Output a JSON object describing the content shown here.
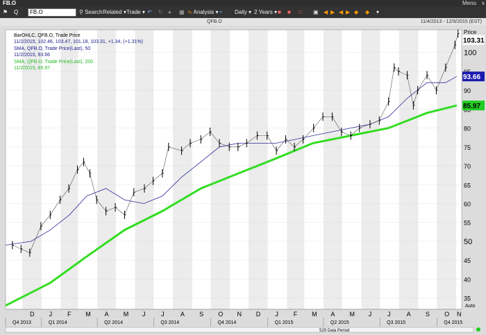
{
  "window": {
    "title": "FB.O",
    "menu_label": "Menu",
    "close_label": "x"
  },
  "toolbar": {
    "symbol_value": "FB.O",
    "symbol_prefix": "Q",
    "search_label": "Search",
    "related_label": "Related",
    "trade_label": "Trade",
    "analysis_label": "Analysis",
    "interval_label": "Daily",
    "range_label": "2 Years"
  },
  "header": {
    "chart_symbol": "QFB.O",
    "date_range": "11/4/2013 - 12/9/2015 (EST)"
  },
  "colors": {
    "price": "#000000",
    "sma50": "#2a2a9a",
    "sma200": "#33dd22",
    "sma50_tag": "#1a1ab0",
    "sma200_tag": "#22cc22",
    "band": "#ececec"
  },
  "chart_data": {
    "type": "line",
    "series": [
      {
        "name": "BarOHLC, QFB.O, Trade Price",
        "color": "#000000",
        "kind": "ohlc",
        "x": [
          "2013-11-15",
          "2013-11-29",
          "2013-12-13",
          "2013-12-31",
          "2014-01-15",
          "2014-01-31",
          "2014-02-14",
          "2014-02-28",
          "2014-03-10",
          "2014-03-20",
          "2014-03-31",
          "2014-04-15",
          "2014-04-30",
          "2014-05-15",
          "2014-05-30",
          "2014-06-16",
          "2014-06-30",
          "2014-07-15",
          "2014-07-25",
          "2014-08-15",
          "2014-08-29",
          "2014-09-15",
          "2014-09-30",
          "2014-10-15",
          "2014-10-31",
          "2014-11-14",
          "2014-11-28",
          "2014-12-15",
          "2014-12-31",
          "2015-01-15",
          "2015-01-30",
          "2015-02-13",
          "2015-02-27",
          "2015-03-16",
          "2015-03-31",
          "2015-04-15",
          "2015-04-30",
          "2015-05-15",
          "2015-05-29",
          "2015-06-15",
          "2015-06-30",
          "2015-07-15",
          "2015-07-24",
          "2015-07-31",
          "2015-08-14",
          "2015-08-24",
          "2015-08-31",
          "2015-09-15",
          "2015-09-30",
          "2015-10-15",
          "2015-10-30",
          "2015-11-04"
        ],
        "y": [
          49,
          48,
          47,
          54,
          57,
          61,
          64,
          69,
          71,
          68,
          61,
          58,
          59,
          57,
          63,
          64,
          66,
          68,
          75,
          74,
          76,
          77,
          79,
          76,
          75,
          75,
          76,
          78,
          78,
          74,
          77,
          75,
          77,
          80,
          83,
          83,
          79,
          78,
          80,
          81,
          82,
          87,
          96,
          95,
          94,
          86,
          90,
          94,
          90,
          96,
          102,
          105
        ]
      },
      {
        "name": "SMA, QFB.O, Trade Price(Last), 50",
        "color": "#2a2a9a",
        "kind": "line",
        "x": [
          "2013-11-04",
          "2013-12-15",
          "2014-01-15",
          "2014-02-15",
          "2014-03-15",
          "2014-04-15",
          "2014-05-15",
          "2014-06-15",
          "2014-07-15",
          "2014-08-15",
          "2014-09-15",
          "2014-10-15",
          "2014-11-15",
          "2014-12-15",
          "2015-01-15",
          "2015-02-15",
          "2015-03-15",
          "2015-04-15",
          "2015-05-15",
          "2015-06-15",
          "2015-07-15",
          "2015-08-15",
          "2015-09-15",
          "2015-10-15",
          "2015-11-02"
        ],
        "y": [
          49,
          50,
          53,
          57,
          62,
          64,
          61,
          60,
          62,
          67,
          71,
          75,
          76,
          76,
          76,
          77,
          78,
          79,
          80,
          81,
          83,
          88,
          92,
          92,
          93.66
        ]
      },
      {
        "name": "SMA, QFB.O, Trade Price(Last), 200",
        "color": "#33dd22",
        "kind": "line",
        "x": [
          "2013-11-04",
          "2014-01-15",
          "2014-03-15",
          "2014-05-15",
          "2014-07-15",
          "2014-09-15",
          "2014-11-15",
          "2015-01-15",
          "2015-03-15",
          "2015-05-15",
          "2015-07-15",
          "2015-09-15",
          "2015-11-02"
        ],
        "y": [
          33,
          39,
          46,
          53,
          58,
          64,
          68,
          72,
          76,
          78,
          80,
          84,
          85.97
        ]
      }
    ],
    "legend": {
      "ohlc_title": "BarOHLC, QFB.O, Trade Price",
      "ohlc_values": "11/2/2015, 102.46, 103.47, 101.18, 103.31, +1.34, (+1.31%)",
      "sma50_title": "SMA, QFB.O, Trade Price(Last), 50",
      "sma50_values": "11/2/2015, 93.66",
      "sma200_title": "SMA, QFB.O, Trade Price(Last), 200",
      "sma200_values": "11/2/2015, 85.97",
      "placement": "top-left"
    },
    "ylabel": "Price",
    "ylim": [
      32,
      106
    ],
    "yticks": [
      35,
      40,
      45,
      50,
      55,
      60,
      65,
      70,
      75,
      80,
      85,
      90,
      95,
      100
    ],
    "ytick_labels": [
      "35",
      "40",
      "45",
      "50",
      "55",
      "60",
      "65",
      "70",
      "75",
      "80",
      "85",
      "90",
      "95",
      "100"
    ],
    "last_price_tag": "103.31",
    "sma50_tag": "93.66",
    "sma200_tag": "85.97",
    "auto_label": "Auto",
    "month_ticks": [
      {
        "label": "D",
        "date": "2013-12-01"
      },
      {
        "label": "J",
        "date": "2014-01-01"
      },
      {
        "label": "F",
        "date": "2014-02-01"
      },
      {
        "label": "M",
        "date": "2014-03-01"
      },
      {
        "label": "A",
        "date": "2014-04-01"
      },
      {
        "label": "M",
        "date": "2014-05-01"
      },
      {
        "label": "J",
        "date": "2014-06-01"
      },
      {
        "label": "J",
        "date": "2014-07-01"
      },
      {
        "label": "A",
        "date": "2014-08-01"
      },
      {
        "label": "S",
        "date": "2014-09-01"
      },
      {
        "label": "O",
        "date": "2014-10-01"
      },
      {
        "label": "N",
        "date": "2014-11-01"
      },
      {
        "label": "D",
        "date": "2014-12-01"
      },
      {
        "label": "J",
        "date": "2015-01-01"
      },
      {
        "label": "F",
        "date": "2015-02-01"
      },
      {
        "label": "M",
        "date": "2015-03-01"
      },
      {
        "label": "A",
        "date": "2015-04-01"
      },
      {
        "label": "M",
        "date": "2015-05-01"
      },
      {
        "label": "J",
        "date": "2015-06-01"
      },
      {
        "label": "J",
        "date": "2015-07-01"
      },
      {
        "label": "A",
        "date": "2015-08-01"
      },
      {
        "label": "S",
        "date": "2015-09-01"
      },
      {
        "label": "O",
        "date": "2015-10-01"
      },
      {
        "label": "N",
        "date": "2015-11-01"
      }
    ],
    "quarter_ticks": [
      {
        "label": "Q4 2013",
        "date": "2013-11-04"
      },
      {
        "label": "Q1 2014",
        "date": "2014-01-01"
      },
      {
        "label": "Q2 2014",
        "date": "2014-04-01"
      },
      {
        "label": "Q3 2014",
        "date": "2014-07-01"
      },
      {
        "label": "Q4 2014",
        "date": "2014-10-01"
      },
      {
        "label": "Q1 2015",
        "date": "2015-01-01"
      },
      {
        "label": "Q2 2015",
        "date": "2015-04-01"
      },
      {
        "label": "Q3 2015",
        "date": "2015-07-01"
      },
      {
        "label": "Q4 2015",
        "date": "2015-10-01"
      }
    ],
    "data_period": "529 Data Period",
    "x_start": "2013-11-04",
    "x_end": "2015-11-10",
    "grid": true
  }
}
